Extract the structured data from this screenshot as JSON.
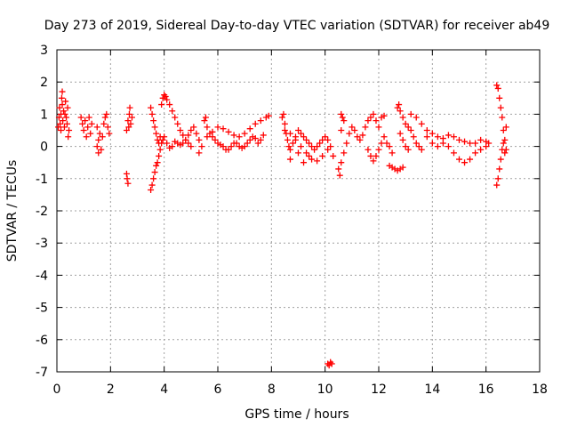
{
  "chart_data": {
    "type": "scatter",
    "title": "Day 273 of 2019, Sidereal Day-to-day VTEC variation (SDTVAR) for receiver ab49",
    "xlabel": "GPS time / hours",
    "ylabel": "SDTVAR / TECUs",
    "xlim": [
      0,
      18
    ],
    "ylim": [
      -7,
      3
    ],
    "xticks": [
      0,
      2,
      4,
      6,
      8,
      10,
      12,
      14,
      16,
      18
    ],
    "yticks": [
      -7,
      -6,
      -5,
      -4,
      -3,
      -2,
      -1,
      0,
      1,
      2,
      3
    ],
    "grid": true,
    "marker": "plus",
    "colors": {
      "series": "#ff0000",
      "grid": "#a0a0a0",
      "axis": "#000000"
    },
    "series": [
      {
        "name": "SDTVAR",
        "points": [
          [
            0.05,
            0.6
          ],
          [
            0.08,
            0.9
          ],
          [
            0.1,
            1.2
          ],
          [
            0.12,
            0.7
          ],
          [
            0.15,
            1.0
          ],
          [
            0.18,
            1.5
          ],
          [
            0.2,
            1.3
          ],
          [
            0.22,
            0.8
          ],
          [
            0.25,
            1.1
          ],
          [
            0.28,
            0.6
          ],
          [
            0.3,
            1.0
          ],
          [
            0.32,
            1.4
          ],
          [
            0.35,
            0.9
          ],
          [
            0.38,
            0.7
          ],
          [
            0.4,
            1.2
          ],
          [
            0.42,
            0.3
          ],
          [
            0.45,
            0.5
          ],
          [
            0.2,
            1.7
          ],
          [
            0.15,
            0.5
          ],
          [
            0.9,
            0.9
          ],
          [
            0.95,
            0.7
          ],
          [
            1.0,
            0.5
          ],
          [
            1.05,
            0.8
          ],
          [
            1.1,
            0.3
          ],
          [
            1.15,
            0.6
          ],
          [
            1.2,
            0.9
          ],
          [
            1.25,
            0.4
          ],
          [
            1.3,
            0.7
          ],
          [
            1.5,
            0.6
          ],
          [
            1.55,
            0.2
          ],
          [
            1.6,
            0.4
          ],
          [
            1.65,
            -0.1
          ],
          [
            1.7,
            0.3
          ],
          [
            1.75,
            0.7
          ],
          [
            1.8,
            0.9
          ],
          [
            1.85,
            1.0
          ],
          [
            1.9,
            0.6
          ],
          [
            1.95,
            0.4
          ],
          [
            1.5,
            0.0
          ],
          [
            1.55,
            -0.2
          ],
          [
            2.6,
            -0.85
          ],
          [
            2.62,
            -1.0
          ],
          [
            2.65,
            -1.15
          ],
          [
            2.6,
            0.5
          ],
          [
            2.65,
            0.8
          ],
          [
            2.7,
            1.0
          ],
          [
            2.72,
            1.2
          ],
          [
            2.75,
            0.7
          ],
          [
            2.8,
            0.9
          ],
          [
            2.68,
            0.6
          ],
          [
            3.5,
            -1.35
          ],
          [
            3.55,
            -1.2
          ],
          [
            3.6,
            -1.0
          ],
          [
            3.65,
            -0.8
          ],
          [
            3.7,
            -0.6
          ],
          [
            3.75,
            -0.5
          ],
          [
            3.8,
            -0.3
          ],
          [
            3.85,
            -0.1
          ],
          [
            3.9,
            0.1
          ],
          [
            3.95,
            0.2
          ],
          [
            3.5,
            1.2
          ],
          [
            3.55,
            1.0
          ],
          [
            3.6,
            0.8
          ],
          [
            3.65,
            0.6
          ],
          [
            3.7,
            0.4
          ],
          [
            3.75,
            0.2
          ],
          [
            3.8,
            0.1
          ],
          [
            3.85,
            0.3
          ],
          [
            3.9,
            1.3
          ],
          [
            3.95,
            1.5
          ],
          [
            4.0,
            1.6
          ],
          [
            4.05,
            1.55
          ],
          [
            4.1,
            1.45
          ],
          [
            4.2,
            1.3
          ],
          [
            4.3,
            1.1
          ],
          [
            4.4,
            0.9
          ],
          [
            4.5,
            0.7
          ],
          [
            4.6,
            0.5
          ],
          [
            4.7,
            0.35
          ],
          [
            4.8,
            0.2
          ],
          [
            4.9,
            0.1
          ],
          [
            5.0,
            0.0
          ],
          [
            4.0,
            0.3
          ],
          [
            4.1,
            0.1
          ],
          [
            4.2,
            -0.05
          ],
          [
            4.3,
            0.0
          ],
          [
            4.4,
            0.15
          ],
          [
            4.5,
            0.1
          ],
          [
            4.6,
            0.05
          ],
          [
            4.7,
            0.1
          ],
          [
            4.8,
            0.2
          ],
          [
            4.9,
            0.35
          ],
          [
            5.0,
            0.5
          ],
          [
            5.1,
            0.6
          ],
          [
            5.2,
            0.4
          ],
          [
            5.3,
            0.2
          ],
          [
            5.4,
            0.0
          ],
          [
            5.5,
            0.8
          ],
          [
            5.55,
            0.9
          ],
          [
            5.6,
            0.6
          ],
          [
            5.7,
            0.4
          ],
          [
            5.8,
            0.3
          ],
          [
            5.9,
            0.2
          ],
          [
            6.0,
            0.1
          ],
          [
            6.1,
            0.05
          ],
          [
            6.2,
            0.0
          ],
          [
            6.3,
            -0.1
          ],
          [
            6.4,
            -0.1
          ],
          [
            6.5,
            0.0
          ],
          [
            6.6,
            0.1
          ],
          [
            6.7,
            0.1
          ],
          [
            6.8,
            0.0
          ],
          [
            6.9,
            -0.05
          ],
          [
            7.0,
            0.0
          ],
          [
            7.1,
            0.1
          ],
          [
            7.2,
            0.2
          ],
          [
            7.3,
            0.3
          ],
          [
            7.4,
            0.25
          ],
          [
            7.5,
            0.1
          ],
          [
            7.6,
            0.2
          ],
          [
            7.7,
            0.35
          ],
          [
            5.6,
            0.3
          ],
          [
            5.8,
            0.45
          ],
          [
            6.0,
            0.6
          ],
          [
            6.2,
            0.55
          ],
          [
            6.4,
            0.45
          ],
          [
            6.6,
            0.35
          ],
          [
            6.8,
            0.3
          ],
          [
            7.0,
            0.4
          ],
          [
            7.2,
            0.55
          ],
          [
            7.4,
            0.7
          ],
          [
            7.6,
            0.8
          ],
          [
            7.8,
            0.9
          ],
          [
            7.9,
            0.95
          ],
          [
            5.3,
            -0.2
          ],
          [
            8.4,
            0.9
          ],
          [
            8.45,
            1.0
          ],
          [
            8.5,
            0.7
          ],
          [
            8.55,
            0.4
          ],
          [
            8.6,
            0.2
          ],
          [
            8.65,
            0.0
          ],
          [
            8.7,
            -0.1
          ],
          [
            8.8,
            0.1
          ],
          [
            8.9,
            0.3
          ],
          [
            9.0,
            0.5
          ],
          [
            9.1,
            0.4
          ],
          [
            9.2,
            0.3
          ],
          [
            9.3,
            0.2
          ],
          [
            9.4,
            0.1
          ],
          [
            9.5,
            0.0
          ],
          [
            9.6,
            -0.1
          ],
          [
            9.7,
            0.0
          ],
          [
            9.8,
            0.1
          ],
          [
            9.9,
            0.2
          ],
          [
            10.0,
            0.3
          ],
          [
            10.1,
            0.2
          ],
          [
            10.2,
            0.0
          ],
          [
            8.5,
            0.5
          ],
          [
            8.7,
            0.4
          ],
          [
            8.9,
            0.2
          ],
          [
            9.1,
            0.0
          ],
          [
            9.3,
            -0.2
          ],
          [
            9.5,
            -0.4
          ],
          [
            9.7,
            -0.45
          ],
          [
            9.9,
            -0.3
          ],
          [
            10.1,
            -0.1
          ],
          [
            9.0,
            -0.2
          ],
          [
            9.2,
            -0.5
          ],
          [
            9.4,
            -0.3
          ],
          [
            8.7,
            -0.4
          ],
          [
            10.3,
            -0.3
          ],
          [
            10.1,
            -6.75
          ],
          [
            10.15,
            -6.8
          ],
          [
            10.2,
            -6.7
          ],
          [
            10.25,
            -6.75
          ],
          [
            10.5,
            -0.7
          ],
          [
            10.55,
            -0.9
          ],
          [
            10.6,
            -0.5
          ],
          [
            10.7,
            -0.2
          ],
          [
            10.8,
            0.1
          ],
          [
            10.9,
            0.4
          ],
          [
            11.0,
            0.6
          ],
          [
            11.1,
            0.5
          ],
          [
            11.2,
            0.3
          ],
          [
            11.3,
            0.2
          ],
          [
            11.4,
            0.35
          ],
          [
            10.6,
            0.5
          ],
          [
            10.7,
            0.8
          ],
          [
            10.6,
            1.0
          ],
          [
            10.65,
            0.9
          ],
          [
            11.5,
            0.6
          ],
          [
            11.6,
            0.8
          ],
          [
            11.7,
            0.9
          ],
          [
            11.8,
            1.0
          ],
          [
            11.9,
            0.8
          ],
          [
            12.0,
            0.6
          ],
          [
            12.1,
            0.9
          ],
          [
            12.2,
            0.95
          ],
          [
            11.6,
            -0.1
          ],
          [
            11.7,
            -0.3
          ],
          [
            11.8,
            -0.45
          ],
          [
            11.9,
            -0.3
          ],
          [
            12.0,
            -0.1
          ],
          [
            12.1,
            0.1
          ],
          [
            12.2,
            0.3
          ],
          [
            12.3,
            0.1
          ],
          [
            12.4,
            0.0
          ],
          [
            12.5,
            -0.2
          ],
          [
            12.4,
            -0.6
          ],
          [
            12.5,
            -0.65
          ],
          [
            12.6,
            -0.7
          ],
          [
            12.7,
            -0.75
          ],
          [
            12.8,
            -0.7
          ],
          [
            12.9,
            -0.65
          ],
          [
            12.7,
            1.2
          ],
          [
            12.75,
            1.3
          ],
          [
            12.8,
            1.1
          ],
          [
            12.9,
            0.9
          ],
          [
            13.0,
            0.7
          ],
          [
            13.1,
            0.6
          ],
          [
            13.2,
            0.5
          ],
          [
            13.3,
            0.3
          ],
          [
            13.4,
            0.1
          ],
          [
            13.5,
            0.0
          ],
          [
            13.6,
            -0.1
          ],
          [
            12.8,
            0.4
          ],
          [
            12.9,
            0.2
          ],
          [
            13.0,
            0.0
          ],
          [
            13.1,
            -0.1
          ],
          [
            13.2,
            1.0
          ],
          [
            13.4,
            0.9
          ],
          [
            13.6,
            0.7
          ],
          [
            13.8,
            0.5
          ],
          [
            14.0,
            0.4
          ],
          [
            14.2,
            0.3
          ],
          [
            14.4,
            0.25
          ],
          [
            14.6,
            0.35
          ],
          [
            14.8,
            0.3
          ],
          [
            15.0,
            0.2
          ],
          [
            15.2,
            0.15
          ],
          [
            15.4,
            0.1
          ],
          [
            15.6,
            0.1
          ],
          [
            15.8,
            0.2
          ],
          [
            16.0,
            0.15
          ],
          [
            16.1,
            0.1
          ],
          [
            13.8,
            0.3
          ],
          [
            14.0,
            0.1
          ],
          [
            14.2,
            0.0
          ],
          [
            14.4,
            0.1
          ],
          [
            14.6,
            0.0
          ],
          [
            14.8,
            -0.2
          ],
          [
            15.0,
            -0.4
          ],
          [
            15.2,
            -0.5
          ],
          [
            15.4,
            -0.4
          ],
          [
            15.6,
            -0.2
          ],
          [
            15.8,
            -0.1
          ],
          [
            16.0,
            0.0
          ],
          [
            16.4,
            1.9
          ],
          [
            16.45,
            1.8
          ],
          [
            16.5,
            1.5
          ],
          [
            16.55,
            1.2
          ],
          [
            16.6,
            0.9
          ],
          [
            16.65,
            0.5
          ],
          [
            16.7,
            0.2
          ],
          [
            16.75,
            0.6
          ],
          [
            16.4,
            -1.2
          ],
          [
            16.45,
            -1.0
          ],
          [
            16.5,
            -0.7
          ],
          [
            16.55,
            -0.4
          ],
          [
            16.6,
            -0.1
          ],
          [
            16.65,
            0.1
          ],
          [
            16.7,
            -0.2
          ],
          [
            16.75,
            -0.1
          ]
        ]
      }
    ]
  }
}
